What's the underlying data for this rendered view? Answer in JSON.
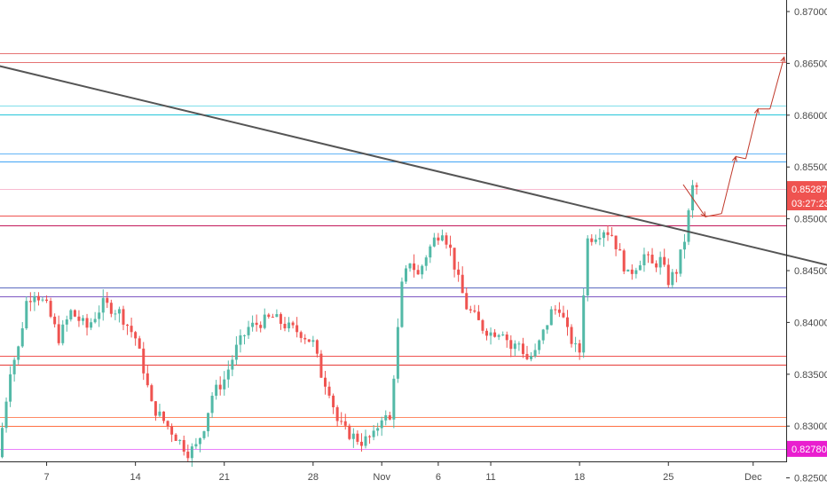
{
  "chart_data": {
    "type": "candlestick",
    "title": "",
    "xlabel": "",
    "ylabel": "",
    "x_ticks": [
      "7",
      "14",
      "21",
      "28",
      "Nov",
      "6",
      "11",
      "18",
      "25",
      "Dec"
    ],
    "y_ticks": [
      "0.87000",
      "0.86500",
      "0.86000",
      "0.85500",
      "0.85000",
      "0.84500",
      "0.84000",
      "0.83500",
      "0.83000",
      "0.82500"
    ],
    "ylim": [
      0.821,
      0.871
    ],
    "grid": false,
    "last_price": "0.85287",
    "countdown": "03:27:23",
    "marker_price": "0.82780",
    "colors": {
      "up": "#53b9a7",
      "down": "#ef5350",
      "trendline": "#555555",
      "projection": "#c0392b",
      "price_badge": "#ef5350",
      "marker_badge": "#e91ecf"
    },
    "horizontal_levels": [
      {
        "price": 0.866,
        "color": "#e57373"
      },
      {
        "price": 0.8651,
        "color": "#e57373"
      },
      {
        "price": 0.8609,
        "color": "#80deea"
      },
      {
        "price": 0.86005,
        "color": "#26c6da"
      },
      {
        "price": 0.8563,
        "color": "#64b5f6"
      },
      {
        "price": 0.8555,
        "color": "#42a5f5"
      },
      {
        "price": 0.85287,
        "color": "#f8bbd0"
      },
      {
        "price": 0.8503,
        "color": "#ef5350"
      },
      {
        "price": 0.8494,
        "color": "#c2185b"
      },
      {
        "price": 0.8434,
        "color": "#5c6bc0"
      },
      {
        "price": 0.8425,
        "color": "#7e57c2"
      },
      {
        "price": 0.8368,
        "color": "#ef5350"
      },
      {
        "price": 0.8359,
        "color": "#e53935"
      },
      {
        "price": 0.8309,
        "color": "#ff8a65"
      },
      {
        "price": 0.83,
        "color": "#ff7043"
      },
      {
        "price": 0.8278,
        "color": "#ea80fc"
      }
    ],
    "trendline": [
      {
        "bar": -1,
        "price": 0.8648
      },
      {
        "bar": 219,
        "price": 0.8442
      }
    ],
    "projection_path": [
      {
        "bar": 169,
        "price": 0.8533
      },
      {
        "bar": 174.5,
        "price": 0.8502
      },
      {
        "bar": 178.5,
        "price": 0.8505
      },
      {
        "bar": 182,
        "price": 0.856
      },
      {
        "bar": 184.5,
        "price": 0.8558
      },
      {
        "bar": 187.5,
        "price": 0.8606
      },
      {
        "bar": 190.5,
        "price": 0.8606
      },
      {
        "bar": 194,
        "price": 0.8656
      }
    ],
    "candle_anchors": [
      [
        0,
        0.827
      ],
      [
        3,
        0.8355
      ],
      [
        5,
        0.8375
      ],
      [
        7,
        0.842
      ],
      [
        9,
        0.843
      ],
      [
        10,
        0.8425
      ],
      [
        12,
        0.8415
      ],
      [
        15,
        0.8385
      ],
      [
        18,
        0.841
      ],
      [
        22,
        0.8395
      ],
      [
        26,
        0.8418
      ],
      [
        30,
        0.841
      ],
      [
        34,
        0.8385
      ],
      [
        36,
        0.8355
      ],
      [
        38,
        0.832
      ],
      [
        40,
        0.831
      ],
      [
        44,
        0.829
      ],
      [
        47,
        0.8275
      ],
      [
        49,
        0.828
      ],
      [
        51,
        0.83
      ],
      [
        53,
        0.833
      ],
      [
        56,
        0.8345
      ],
      [
        59,
        0.8375
      ],
      [
        62,
        0.8395
      ],
      [
        65,
        0.84
      ],
      [
        68,
        0.8405
      ],
      [
        72,
        0.8395
      ],
      [
        75,
        0.839
      ],
      [
        78,
        0.838
      ],
      [
        80,
        0.835
      ],
      [
        82,
        0.8335
      ],
      [
        84,
        0.8305
      ],
      [
        86,
        0.8295
      ],
      [
        88,
        0.829
      ],
      [
        90,
        0.8285
      ],
      [
        93,
        0.829
      ],
      [
        95,
        0.831
      ],
      [
        97,
        0.8305
      ],
      [
        98,
        0.835
      ],
      [
        100,
        0.8435
      ],
      [
        102,
        0.846
      ],
      [
        104,
        0.8445
      ],
      [
        106,
        0.8465
      ],
      [
        108,
        0.848
      ],
      [
        110,
        0.849
      ],
      [
        112,
        0.847
      ],
      [
        114,
        0.844
      ],
      [
        116,
        0.8415
      ],
      [
        118,
        0.8405
      ],
      [
        120,
        0.8395
      ],
      [
        122,
        0.839
      ],
      [
        125,
        0.8393
      ],
      [
        127,
        0.8375
      ],
      [
        129,
        0.838
      ],
      [
        131,
        0.8365
      ],
      [
        133,
        0.837
      ],
      [
        135,
        0.839
      ],
      [
        137,
        0.841
      ],
      [
        139,
        0.8415
      ],
      [
        141,
        0.839
      ],
      [
        143,
        0.8375
      ],
      [
        144,
        0.8372
      ],
      [
        145,
        0.843
      ],
      [
        146,
        0.848
      ],
      [
        148,
        0.8485
      ],
      [
        150,
        0.849
      ],
      [
        152,
        0.8485
      ],
      [
        154,
        0.8465
      ],
      [
        156,
        0.8445
      ],
      [
        158,
        0.8455
      ],
      [
        160,
        0.8465
      ],
      [
        162,
        0.8455
      ],
      [
        164,
        0.846
      ],
      [
        166,
        0.844
      ],
      [
        168,
        0.845
      ],
      [
        170,
        0.848
      ],
      [
        171,
        0.8505
      ],
      [
        172,
        0.853
      ]
    ]
  }
}
